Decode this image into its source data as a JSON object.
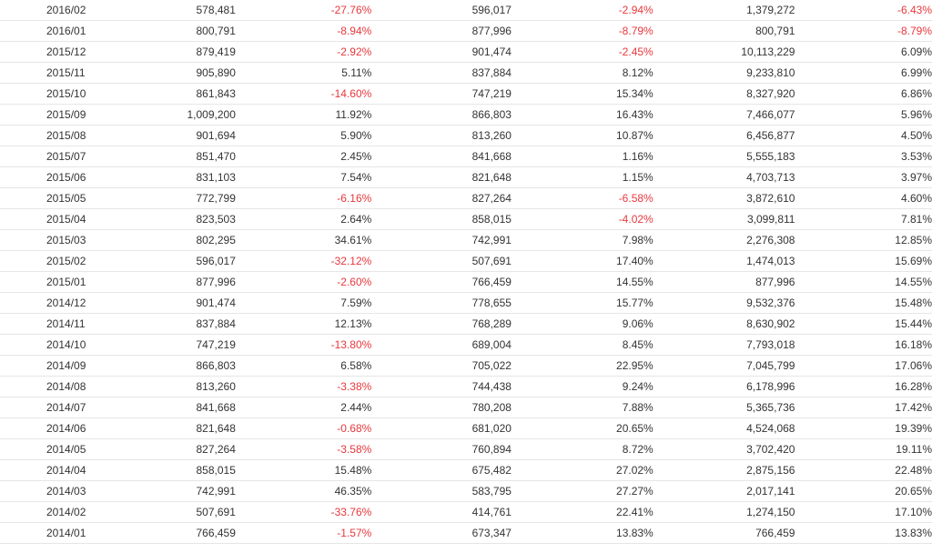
{
  "rows": [
    [
      "2016/02",
      "578,481",
      "-27.76%",
      "596,017",
      "-2.94%",
      "1,379,272",
      "-6.43%"
    ],
    [
      "2016/01",
      "800,791",
      "-8.94%",
      "877,996",
      "-8.79%",
      "800,791",
      "-8.79%"
    ],
    [
      "2015/12",
      "879,419",
      "-2.92%",
      "901,474",
      "-2.45%",
      "10,113,229",
      "6.09%"
    ],
    [
      "2015/11",
      "905,890",
      "5.11%",
      "837,884",
      "8.12%",
      "9,233,810",
      "6.99%"
    ],
    [
      "2015/10",
      "861,843",
      "-14.60%",
      "747,219",
      "15.34%",
      "8,327,920",
      "6.86%"
    ],
    [
      "2015/09",
      "1,009,200",
      "11.92%",
      "866,803",
      "16.43%",
      "7,466,077",
      "5.96%"
    ],
    [
      "2015/08",
      "901,694",
      "5.90%",
      "813,260",
      "10.87%",
      "6,456,877",
      "4.50%"
    ],
    [
      "2015/07",
      "851,470",
      "2.45%",
      "841,668",
      "1.16%",
      "5,555,183",
      "3.53%"
    ],
    [
      "2015/06",
      "831,103",
      "7.54%",
      "821,648",
      "1.15%",
      "4,703,713",
      "3.97%"
    ],
    [
      "2015/05",
      "772,799",
      "-6.16%",
      "827,264",
      "-6.58%",
      "3,872,610",
      "4.60%"
    ],
    [
      "2015/04",
      "823,503",
      "2.64%",
      "858,015",
      "-4.02%",
      "3,099,811",
      "7.81%"
    ],
    [
      "2015/03",
      "802,295",
      "34.61%",
      "742,991",
      "7.98%",
      "2,276,308",
      "12.85%"
    ],
    [
      "2015/02",
      "596,017",
      "-32.12%",
      "507,691",
      "17.40%",
      "1,474,013",
      "15.69%"
    ],
    [
      "2015/01",
      "877,996",
      "-2.60%",
      "766,459",
      "14.55%",
      "877,996",
      "14.55%"
    ],
    [
      "2014/12",
      "901,474",
      "7.59%",
      "778,655",
      "15.77%",
      "9,532,376",
      "15.48%"
    ],
    [
      "2014/11",
      "837,884",
      "12.13%",
      "768,289",
      "9.06%",
      "8,630,902",
      "15.44%"
    ],
    [
      "2014/10",
      "747,219",
      "-13.80%",
      "689,004",
      "8.45%",
      "7,793,018",
      "16.18%"
    ],
    [
      "2014/09",
      "866,803",
      "6.58%",
      "705,022",
      "22.95%",
      "7,045,799",
      "17.06%"
    ],
    [
      "2014/08",
      "813,260",
      "-3.38%",
      "744,438",
      "9.24%",
      "6,178,996",
      "16.28%"
    ],
    [
      "2014/07",
      "841,668",
      "2.44%",
      "780,208",
      "7.88%",
      "5,365,736",
      "17.42%"
    ],
    [
      "2014/06",
      "821,648",
      "-0.68%",
      "681,020",
      "20.65%",
      "4,524,068",
      "19.39%"
    ],
    [
      "2014/05",
      "827,264",
      "-3.58%",
      "760,894",
      "8.72%",
      "3,702,420",
      "19.11%"
    ],
    [
      "2014/04",
      "858,015",
      "15.48%",
      "675,482",
      "27.02%",
      "2,875,156",
      "22.48%"
    ],
    [
      "2014/03",
      "742,991",
      "46.35%",
      "583,795",
      "27.27%",
      "2,017,141",
      "20.65%"
    ],
    [
      "2014/02",
      "507,691",
      "-33.76%",
      "414,761",
      "22.41%",
      "1,274,150",
      "17.10%"
    ],
    [
      "2014/01",
      "766,459",
      "-1.57%",
      "673,347",
      "13.83%",
      "766,459",
      "13.83%"
    ]
  ],
  "colors": {
    "negative": "#e8383d",
    "text": "#333333",
    "border": "#e6e6e6"
  }
}
